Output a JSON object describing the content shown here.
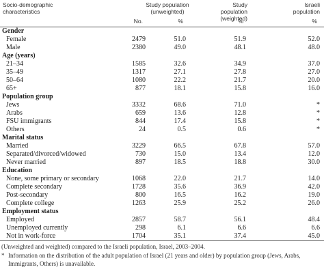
{
  "table": {
    "header": {
      "characteristic": "Socio-demographic characteristics",
      "groups": [
        "Study population (unweighted)",
        "Study population (weighted)",
        "Israeli population"
      ],
      "columns": [
        "No.",
        "%",
        "%",
        "%"
      ]
    },
    "sections": [
      {
        "title": "Gender",
        "rows": [
          [
            "Female",
            "2479",
            "51.0",
            "51.9",
            "52.0"
          ],
          [
            "Male",
            "2380",
            "49.0",
            "48.1",
            "48.0"
          ]
        ]
      },
      {
        "title": "Age (years)",
        "rows": [
          [
            "21–34",
            "1585",
            "32.6",
            "34.9",
            "37.0"
          ],
          [
            "35–49",
            "1317",
            "27.1",
            "27.8",
            "27.0"
          ],
          [
            "50–64",
            "1080",
            "22.2",
            "21.7",
            "20.0"
          ],
          [
            "65+",
            "877",
            "18.1",
            "15.8",
            "16.0"
          ]
        ]
      },
      {
        "title": "Population group",
        "rows": [
          [
            "Jews",
            "3332",
            "68.6",
            "71.0",
            "*"
          ],
          [
            "Arabs",
            "659",
            "13.6",
            "12.8",
            "*"
          ],
          [
            "FSU immigrants",
            "844",
            "17.4",
            "15.8",
            "*"
          ],
          [
            "Others",
            "24",
            "0.5",
            "0.6",
            "*"
          ]
        ]
      },
      {
        "title": "Marital status",
        "rows": [
          [
            "Married",
            "3229",
            "66.5",
            "67.8",
            "57.0"
          ],
          [
            "Separated/divorced/widowed",
            "730",
            "15.0",
            "13.4",
            "12.0"
          ],
          [
            "Never married",
            "897",
            "18.5",
            "18.8",
            "30.0"
          ]
        ]
      },
      {
        "title": "Education",
        "rows": [
          [
            "None, some primary or secondary",
            "1068",
            "22.0",
            "21.7",
            "14.0"
          ],
          [
            "Complete secondary",
            "1728",
            "35.6",
            "36.9",
            "42.0"
          ],
          [
            "Post-secondary",
            "800",
            "16.5",
            "16.2",
            "19.0"
          ],
          [
            "Complete college",
            "1263",
            "25.9",
            "25.2",
            "26.0"
          ]
        ]
      },
      {
        "title": "Employment status",
        "rows": [
          [
            "Employed",
            "2857",
            "58.7",
            "56.1",
            "48.4"
          ],
          [
            "Unemployed currently",
            "298",
            "6.1",
            "6.6",
            "6.6"
          ],
          [
            "Not in work-force",
            "1704",
            "35.1",
            "37.4",
            "45.0"
          ]
        ]
      }
    ],
    "footnotes": {
      "caption": "(Unweighted and weighted) compared to the Israeli population, Israel, 2003–2004.",
      "marker": "*",
      "note": "Information on the distribution of the adult population of Israel (21 years and older) by population group (Jews, Arabs, Immigrants, Others) is unavailable."
    }
  }
}
